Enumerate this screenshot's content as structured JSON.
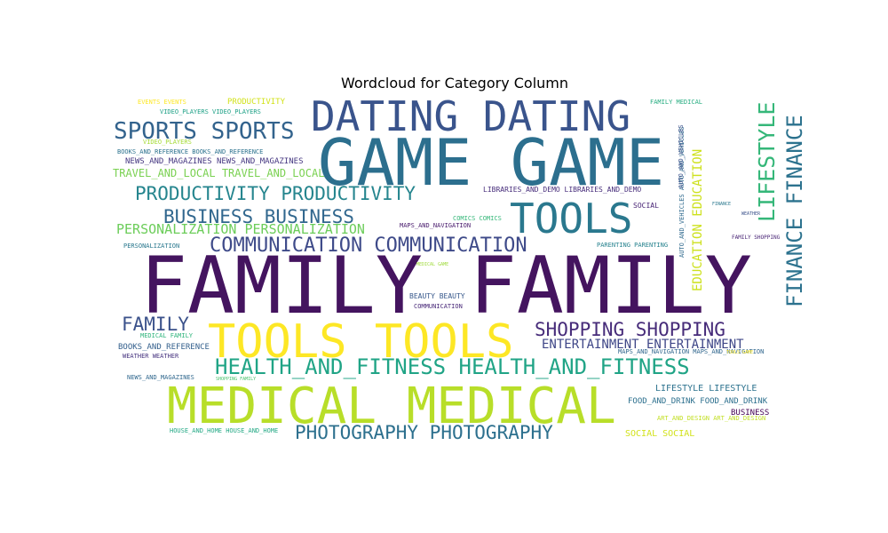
{
  "chart_data": {
    "type": "wordcloud",
    "title": "Wordcloud for Category Column",
    "palette": "viridis",
    "background": "#ffffff",
    "words": [
      {
        "text": "FAMILY FAMILY",
        "color": "#44145f"
      },
      {
        "text": "GAME GAME",
        "color": "#2c6f8e"
      },
      {
        "text": "MEDICAL MEDICAL",
        "color": "#b8de29"
      },
      {
        "text": "TOOLS TOOLS",
        "color": "#fde725"
      },
      {
        "text": "DATING DATING",
        "color": "#3a548c"
      },
      {
        "text": "TOOLS",
        "color": "#2a788e"
      },
      {
        "text": "HEALTH_AND_FITNESS HEALTH_AND_FITNESS",
        "color": "#20a486"
      },
      {
        "text": "PRODUCTIVITY PRODUCTIVITY",
        "color": "#25858e"
      },
      {
        "text": "LIFESTYLE",
        "color": "#35b779"
      },
      {
        "text": "FINANCE FINANCE",
        "color": "#2c728e"
      },
      {
        "text": "SPORTS SPORTS",
        "color": "#33638d"
      },
      {
        "text": "COMMUNICATION COMMUNICATION",
        "color": "#3e4a89"
      },
      {
        "text": "PHOTOGRAPHY PHOTOGRAPHY",
        "color": "#2d708e"
      },
      {
        "text": "BUSINESS BUSINESS",
        "color": "#31678e"
      },
      {
        "text": "SHOPPING SHOPPING",
        "color": "#472c7a"
      },
      {
        "text": "FAMILY",
        "color": "#3b528b"
      },
      {
        "text": "EDUCATION EDUCATION",
        "color": "#cde11d"
      },
      {
        "text": "PERSONALIZATION PERSONALIZATION",
        "color": "#6ccd5a"
      },
      {
        "text": "ENTERTAINMENT ENTERTAINMENT",
        "color": "#3f4788"
      },
      {
        "text": "TRAVEL_AND_LOCAL TRAVEL_AND_LOCAL",
        "color": "#7ad151"
      },
      {
        "text": "NEWS_AND_MAGAZINES NEWS_AND_MAGAZINES",
        "color": "#453781"
      },
      {
        "text": "BOOKS_AND_REFERENCE BOOKS_AND_REFERENCE",
        "color": "#2c728e"
      },
      {
        "text": "VIDEO_PLAYERS VIDEO_PLAYERS",
        "color": "#1fa187"
      },
      {
        "text": "EVENTS EVENTS",
        "color": "#fde725"
      },
      {
        "text": "PRODUCTIVITY",
        "color": "#d2e21b"
      },
      {
        "text": "VIDEO_PLAYERS",
        "color": "#a5db36"
      },
      {
        "text": "FAMILY MEDICAL",
        "color": "#27ad81"
      },
      {
        "text": "AUTO_AND_VEHICLES AUTO_AND_VEHICLES",
        "color": "#306a8e"
      },
      {
        "text": "AUTO_AND_VEHICLES",
        "color": "#3b528b"
      },
      {
        "text": "LIBRARIES_AND_DEMO LIBRARIES_AND_DEMO",
        "color": "#472d7b"
      },
      {
        "text": "SOCIAL",
        "color": "#482475"
      },
      {
        "text": "COMICS COMICS",
        "color": "#35b779"
      },
      {
        "text": "MAPS_AND_NAVIGATION",
        "color": "#481a6c"
      },
      {
        "text": "PERSONALIZATION",
        "color": "#2a788e"
      },
      {
        "text": "PARENTING PARENTING",
        "color": "#26828e"
      },
      {
        "text": "BEAUTY BEAUTY",
        "color": "#38598c"
      },
      {
        "text": "COMMUNICATION",
        "color": "#482878"
      },
      {
        "text": "MEDICAL GAME",
        "color": "#9fda3a"
      },
      {
        "text": "MEDICAL FAMILY",
        "color": "#2fb47c"
      },
      {
        "text": "BOOKS_AND_REFERENCE",
        "color": "#34608d"
      },
      {
        "text": "WEATHER WEATHER",
        "color": "#46337f"
      },
      {
        "text": "NEWS_AND_MAGAZINES",
        "color": "#31688e"
      },
      {
        "text": "SHOPPING FAMILY",
        "color": "#4ac16d"
      },
      {
        "text": "HOUSE_AND_HOME HOUSE_AND_HOME",
        "color": "#22a884"
      },
      {
        "text": "MAPS_AND_NAVIGATION MAPS_AND_NAVIGATION",
        "color": "#31678e"
      },
      {
        "text": "LIFESTYLE LIFESTYLE",
        "color": "#2c728e"
      },
      {
        "text": "FOOD_AND_DRINK FOOD_AND_DRINK",
        "color": "#2d708e"
      },
      {
        "text": "BUSINESS",
        "color": "#440154"
      },
      {
        "text": "ART_AND_DESIGN ART_AND_DESIGN",
        "color": "#c2df23"
      },
      {
        "text": "SOCIAL SOCIAL",
        "color": "#d2e21b"
      },
      {
        "text": "FINANCE",
        "color": "#2a788e"
      },
      {
        "text": "WEATHER",
        "color": "#3b528b"
      },
      {
        "text": "FAMILY SHOPPING",
        "color": "#482475"
      },
      {
        "text": "TOOLS GAME",
        "color": "#fde725"
      }
    ]
  }
}
